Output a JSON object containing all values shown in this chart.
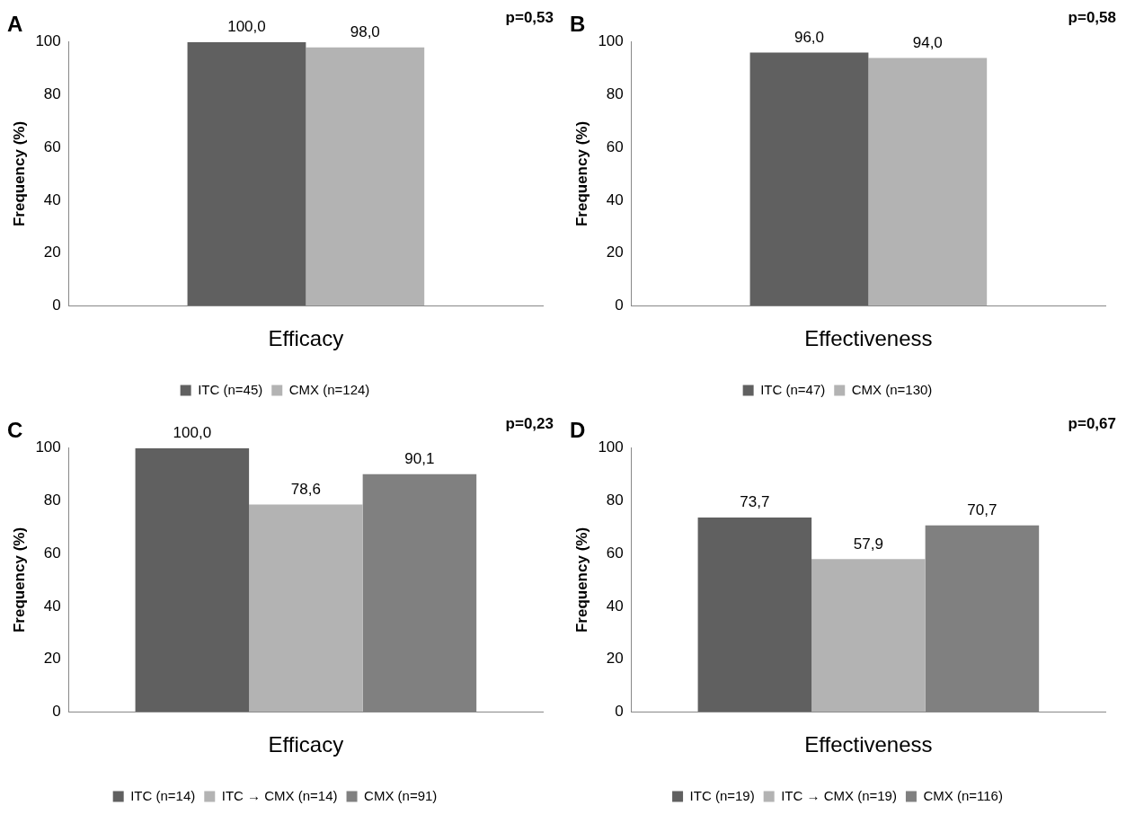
{
  "chart_data": [
    {
      "type": "bar",
      "title": "A",
      "categories": [
        "Efficacy"
      ],
      "ylabel": "Frequency (%)",
      "ylim": [
        0,
        100
      ],
      "yticks": [
        0,
        20,
        40,
        60,
        80,
        100
      ],
      "grid": false,
      "legend": "bottom",
      "annotations": [
        "p=0,53"
      ],
      "series": [
        {
          "name": "ITC (n=45)",
          "color": "#606060",
          "values": [
            100.0
          ],
          "value_labels": [
            "100,0"
          ]
        },
        {
          "name": "CMX (n=124)",
          "color": "#b3b3b3",
          "values": [
            98.0
          ],
          "value_labels": [
            "98,0"
          ]
        }
      ]
    },
    {
      "type": "bar",
      "title": "B",
      "categories": [
        "Effectiveness"
      ],
      "ylabel": "Frequency (%)",
      "ylim": [
        0,
        100
      ],
      "yticks": [
        0,
        20,
        40,
        60,
        80,
        100
      ],
      "grid": false,
      "legend": "bottom",
      "annotations": [
        "p=0,58"
      ],
      "series": [
        {
          "name": "ITC (n=47)",
          "color": "#606060",
          "values": [
            96.0
          ],
          "value_labels": [
            "96,0"
          ]
        },
        {
          "name": "CMX (n=130)",
          "color": "#b3b3b3",
          "values": [
            94.0
          ],
          "value_labels": [
            "94,0"
          ]
        }
      ]
    },
    {
      "type": "bar",
      "title": "C",
      "categories": [
        "Efficacy"
      ],
      "ylabel": "Frequency (%)",
      "ylim": [
        0,
        100
      ],
      "yticks": [
        0,
        20,
        40,
        60,
        80,
        100
      ],
      "grid": false,
      "legend": "bottom",
      "annotations": [
        "p=0,23"
      ],
      "series": [
        {
          "name": "ITC (n=14)",
          "color": "#606060",
          "values": [
            100.0
          ],
          "value_labels": [
            "100,0"
          ]
        },
        {
          "name": "ITC → CMX (n=14)",
          "color": "#b3b3b3",
          "values": [
            78.6
          ],
          "value_labels": [
            "78,6"
          ]
        },
        {
          "name": "CMX (n=91)",
          "color": "#808080",
          "values": [
            90.1
          ],
          "value_labels": [
            "90,1"
          ]
        }
      ]
    },
    {
      "type": "bar",
      "title": "D",
      "categories": [
        "Effectiveness"
      ],
      "ylabel": "Frequency (%)",
      "ylim": [
        0,
        100
      ],
      "yticks": [
        0,
        20,
        40,
        60,
        80,
        100
      ],
      "grid": false,
      "legend": "bottom",
      "annotations": [
        "p=0,67"
      ],
      "series": [
        {
          "name": "ITC (n=19)",
          "color": "#606060",
          "values": [
            73.7
          ],
          "value_labels": [
            "73,7"
          ]
        },
        {
          "name": "ITC → CMX (n=19)",
          "color": "#b3b3b3",
          "values": [
            57.9
          ],
          "value_labels": [
            "57,9"
          ]
        },
        {
          "name": "CMX (n=116)",
          "color": "#808080",
          "values": [
            70.7
          ],
          "value_labels": [
            "70,7"
          ]
        }
      ]
    }
  ]
}
